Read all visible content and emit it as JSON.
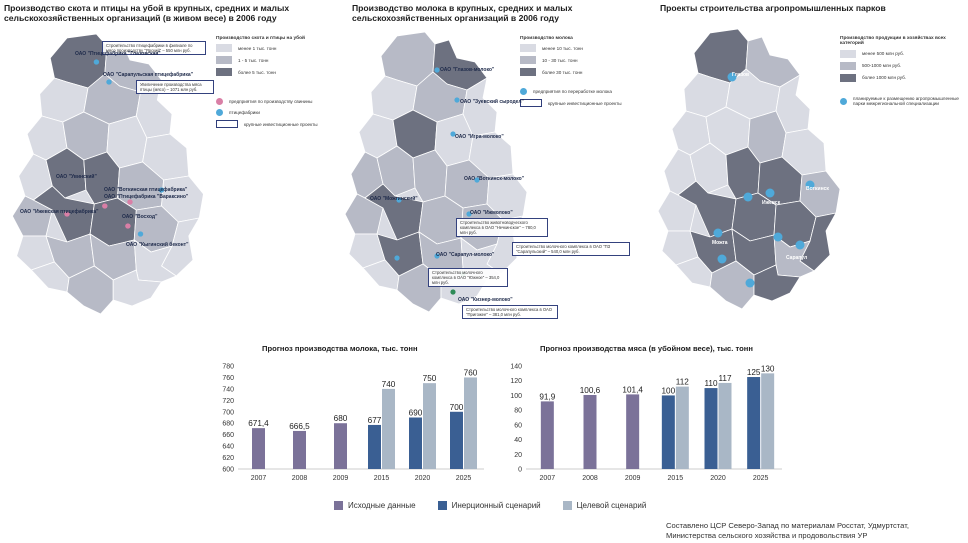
{
  "colors": {
    "map_light": "#d9dbe3",
    "map_mid": "#b7bac6",
    "map_dark": "#6d7180",
    "map_stroke": "#ffffff",
    "dot_blue": "#4fa9d9",
    "dot_pink": "#d97fa6",
    "dot_green": "#2e8b57",
    "callout_border": "#34427e",
    "series_base": "#7b7299",
    "series_inertial": "#3a5f93",
    "series_target": "#a9b7c6"
  },
  "maps": [
    {
      "title": "Производство скота и птицы на убой в крупных, средних и малых сельскохозяйственных организаций (в живом весе) в 2006 году",
      "legend_title": "Производство скота и птицы на убой",
      "legend": [
        {
          "label": "менее 1 тыс. тонн",
          "shade": "light"
        },
        {
          "label": "1 - 5 тыс. тонн",
          "shade": "mid"
        },
        {
          "label": "более 5 тыс. тонн",
          "shade": "dark"
        }
      ],
      "markers": [
        {
          "label": "предприятия по производству свинины",
          "icon": "pink-dot"
        },
        {
          "label": "птицефабрики",
          "icon": "blue-dot"
        },
        {
          "label": "крупные инвестиционные проекты",
          "icon": "outline-rect"
        }
      ],
      "orgs": [
        "ОАО \"Птицефабрика \"Глазовская\"",
        "ОАО \"Сарапульская птицефабрика\"",
        "ОАО \"Увинский\"",
        "ОАО \"Воткинская птицефабрика\"",
        "ОАО \"Птицефабрика \"Вараксино\"",
        "ОАО \"Восход\"",
        "ОАО \"Ижевская птицефабрика\"",
        "ОАО \"Кыгинский беконт\""
      ],
      "callouts": [
        "Строительство птицефабрики в филиале по мясо производству \"Ярский\" – 550 млн руб.",
        "Увеличение производства мяса птицы (мясо) – 1071 млн руб."
      ]
    },
    {
      "title": "Производство молока в крупных, средних и малых сельскохозяйственных организаций в 2006 году",
      "legend_title": "Производство молока",
      "legend": [
        {
          "label": "менее 10 тыс. тонн",
          "shade": "light"
        },
        {
          "label": "10 - 30 тыс. тонн",
          "shade": "mid"
        },
        {
          "label": "более 30 тыс. тонн",
          "shade": "dark"
        }
      ],
      "markers": [
        {
          "label": "предприятия по переработке молока",
          "icon": "blue-dot"
        },
        {
          "label": "крупные инвестиционные проекты",
          "icon": "outline-rect"
        }
      ],
      "orgs": [
        "ОАО \"Глазов-молоко\"",
        "ОАО \"Зуевский сыродел\"",
        "ОАО \"Игра-молоко\"",
        "ОАО \"Воткинск-молоко\"",
        "ОАО \"Ижмолоко\"",
        "ОАО \"Сарапул-молоко\"",
        "ОАО \"Можгинский\"",
        "ОАО \"Кизнер-молоко\""
      ],
      "callouts": [
        "Строительство животноводческого комплекса в ОАО \"Нечкинское\" – 780,0 млн руб.",
        "Строительство молочного комплекса в ОАО \"ПЗ \"Сарапульский\" – 540,0 млн руб.",
        "Строительство молочного комплекса в ОАО \"Южное\" – 354,0 млн руб.",
        "Строительство молочного комплекса в ОАО \"Пригожее\" – 381,0 млн руб."
      ]
    },
    {
      "title": "Проекты строительства агропромышленных парков",
      "legend_title": "Производство продукции в хозяйствах всех категорий",
      "legend": [
        {
          "label": "менее 500 млн руб.",
          "shade": "light"
        },
        {
          "label": "500-1000 млн руб.",
          "shade": "mid"
        },
        {
          "label": "более 1000 млн руб.",
          "shade": "dark"
        }
      ],
      "markers": [
        {
          "label": "планируемые к размещению агропромышленные парки межрегиональной специализации",
          "icon": "blue-dot"
        }
      ],
      "cities": [
        "Глазов",
        "Ижевск",
        "Воткинск",
        "Можга",
        "Сарапул"
      ]
    }
  ],
  "charts": {
    "milk": {
      "title": "Прогноз производства молока, тыс. тонн",
      "chart_data": {
        "type": "bar",
        "categories": [
          "2007",
          "2008",
          "2009",
          "2015",
          "2020",
          "2025"
        ],
        "ylim": [
          600,
          780
        ],
        "yticks": [
          "600",
          "620",
          "640",
          "660",
          "680",
          "700",
          "720",
          "740",
          "760",
          "780"
        ],
        "series": [
          {
            "name": "Исходные данные",
            "values": [
              671.4,
              666.5,
              680,
              null,
              null,
              null
            ]
          },
          {
            "name": "Инерционный сценарий",
            "values": [
              null,
              null,
              null,
              677,
              690,
              700
            ]
          },
          {
            "name": "Целевой сценарий",
            "values": [
              null,
              null,
              null,
              740,
              750,
              760
            ]
          }
        ],
        "labels": {
          "base": [
            "671,4",
            "666,5",
            "680",
            "",
            "",
            ""
          ],
          "inertial": [
            "",
            "",
            "",
            "677",
            "690",
            "700"
          ],
          "target": [
            "",
            "",
            "",
            "740",
            "750",
            "760"
          ]
        }
      }
    },
    "meat": {
      "title": "Прогноз производства мяса (в убойном весе), тыс. тонн",
      "chart_data": {
        "type": "bar",
        "categories": [
          "2007",
          "2008",
          "2009",
          "2015",
          "2020",
          "2025"
        ],
        "ylim": [
          0,
          140
        ],
        "yticks": [
          "0",
          "20",
          "40",
          "60",
          "80",
          "100",
          "120",
          "140"
        ],
        "series": [
          {
            "name": "Исходные данные",
            "values": [
              91.9,
              100.6,
              101.4,
              null,
              null,
              null
            ]
          },
          {
            "name": "Инерционный сценарий",
            "values": [
              null,
              null,
              null,
              100,
              110,
              125
            ]
          },
          {
            "name": "Целевой сценарий",
            "values": [
              null,
              null,
              null,
              112,
              117,
              130
            ]
          }
        ],
        "labels": {
          "base": [
            "91,9",
            "100,6",
            "101,4",
            "",
            "",
            ""
          ],
          "inertial": [
            "",
            "",
            "",
            "100",
            "110",
            "125"
          ],
          "target": [
            "",
            "",
            "",
            "112",
            "117",
            "130"
          ]
        }
      }
    }
  },
  "legend": {
    "base": "Исходные данные",
    "inertial": "Инерционный сценарий",
    "target": "Целевой сценарий"
  },
  "source": {
    "line1": "Составлено ЦСР Северо-Запад по материалам Росстат, Удмуртстат,",
    "line2": "Министерства сельского хозяйства и продовольствия УР"
  }
}
